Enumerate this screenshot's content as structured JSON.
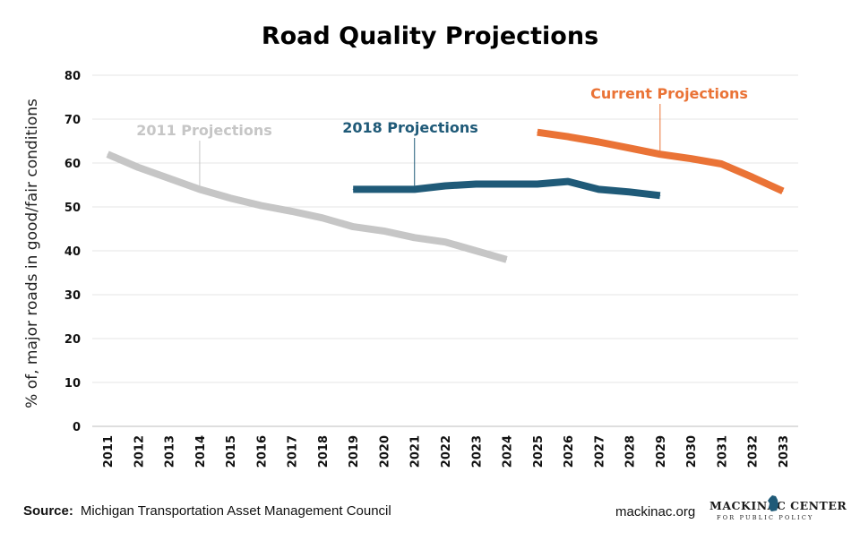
{
  "title": "Road Quality Projections",
  "footer": {
    "source_label": "Source:",
    "source_text": "Michigan Transportation Asset Management Council",
    "website": "mackinac.org",
    "logo_text": "MACKINAC CENTER",
    "logo_subtext": "FOR PUBLIC POLICY"
  },
  "chart_data": {
    "type": "line",
    "title": "Road Quality Projections",
    "xlabel": "",
    "ylabel": "% of, major roads in good/fair conditions",
    "ylim": [
      0,
      80
    ],
    "yticks": [
      0,
      10,
      20,
      30,
      40,
      50,
      60,
      70,
      80
    ],
    "categories": [
      "2011",
      "2012",
      "2013",
      "2014",
      "2015",
      "2016",
      "2017",
      "2018",
      "2019",
      "2020",
      "2021",
      "2022",
      "2023",
      "2024",
      "2025",
      "2026",
      "2027",
      "2028",
      "2029",
      "2030",
      "2031",
      "2032",
      "2033"
    ],
    "grid": true,
    "series": [
      {
        "name": "2011 Projections",
        "color": "#c6c6c6",
        "x": [
          "2011",
          "2012",
          "2013",
          "2014",
          "2015",
          "2016",
          "2017",
          "2018",
          "2019",
          "2020",
          "2021",
          "2022",
          "2023",
          "2024"
        ],
        "values": [
          62,
          59,
          56.5,
          54,
          52,
          50.3,
          49,
          47.5,
          45.5,
          44.5,
          43,
          42,
          40,
          38
        ]
      },
      {
        "name": "2018 Projections",
        "color": "#1f5a78",
        "x": [
          "2019",
          "2020",
          "2021",
          "2022",
          "2023",
          "2024",
          "2025",
          "2026",
          "2027",
          "2028",
          "2029"
        ],
        "values": [
          54,
          54,
          54,
          54.8,
          55.2,
          55.2,
          55.2,
          55.8,
          54,
          53.4,
          52.6
        ]
      },
      {
        "name": "Current Projections",
        "color": "#ea7336",
        "x": [
          "2025",
          "2026",
          "2027",
          "2028",
          "2029",
          "2030",
          "2031",
          "2032",
          "2033"
        ],
        "values": [
          67,
          66,
          64.8,
          63.4,
          62,
          61,
          59.8,
          56.8,
          53.6
        ]
      }
    ]
  }
}
